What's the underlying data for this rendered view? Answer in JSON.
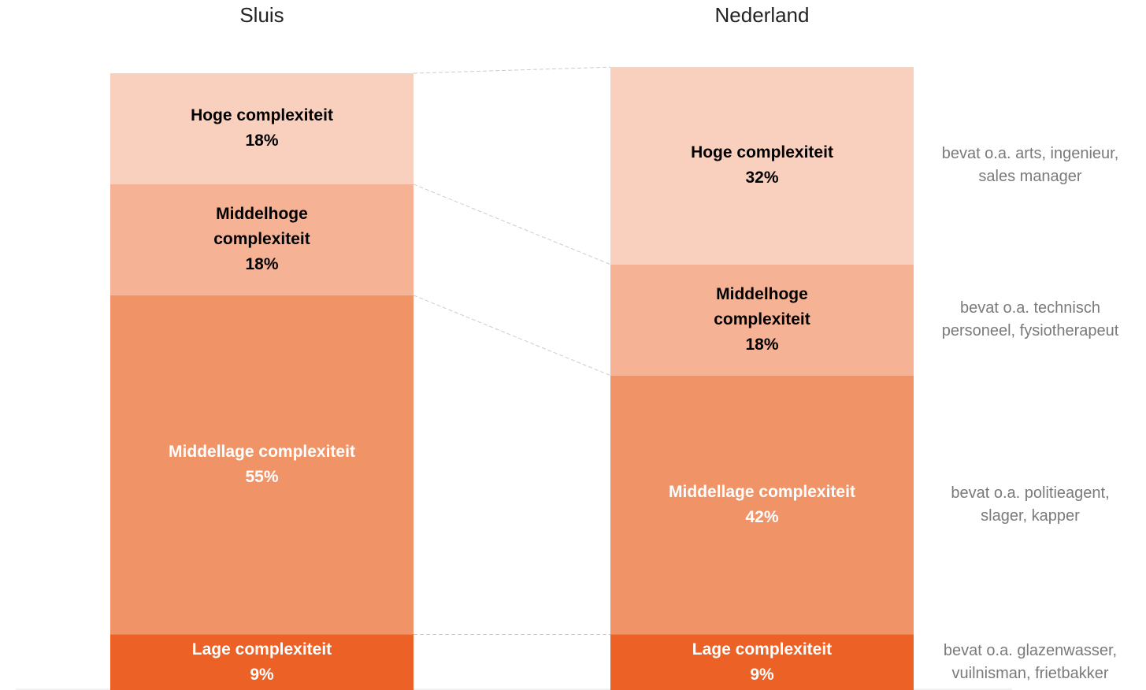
{
  "chart_data": {
    "type": "stacked_bar",
    "categories": [
      "Sluis",
      "Nederland"
    ],
    "ylim": [
      0,
      100
    ],
    "series": [
      {
        "name": "Lage complexiteit",
        "color": "#ec6125",
        "label_color": "#ffffff",
        "values": [
          9,
          9
        ],
        "value_labels": [
          "9%",
          "9%"
        ],
        "note": "bevat o.a. glazenwasser, vuilnisman, frietbakker"
      },
      {
        "name": "Middellage complexiteit",
        "color": "#f09468",
        "label_color": "#ffffff",
        "values": [
          55,
          42
        ],
        "value_labels": [
          "55%",
          "42%"
        ],
        "note": "bevat o.a. politieagent, slager, kapper"
      },
      {
        "name": "Middelhoge complexiteit",
        "color": "#f5b294",
        "label_color": "#000000",
        "values": [
          18,
          18
        ],
        "value_labels": [
          "18%",
          "18%"
        ],
        "note": "bevat o.a. technisch personeel, fysiotherapeut"
      },
      {
        "name": "Hoge complexiteit",
        "color": "#f9cfbd",
        "label_color": "#000000",
        "values": [
          18,
          32
        ],
        "value_labels": [
          "18%",
          "32%"
        ],
        "note": "bevat o.a. arts, ingenieur, sales manager"
      }
    ]
  }
}
